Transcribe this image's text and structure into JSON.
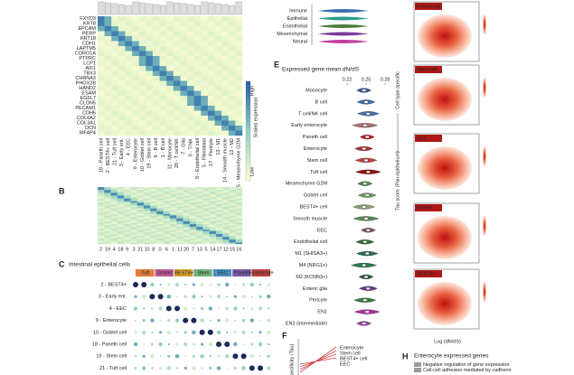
{
  "panels": {
    "A": {
      "letter": "A",
      "genes": [
        "FXYD3",
        "KRT8",
        "EPCAM",
        "PERP",
        "KRT18",
        "CDH1",
        "LAPTM5",
        "CORO1A",
        "PTPRC",
        "LCP1",
        "AIF1",
        "TBX3",
        "CHRNA3",
        "PHOX2B",
        "HAND2",
        "ESAM",
        "EGFL7",
        "CLDN5",
        "PECAM1",
        "CDH5",
        "COL6A2",
        "COL3A1",
        "DCN",
        "MFAP4"
      ],
      "clusters": [
        "18 - Paneth cell",
        "2 - BEST4+ cell",
        "21 - Tuft cell",
        "3 - Early ent.",
        "4 - EEC",
        "9 - Enterocyte",
        "10 - Goblet cell",
        "19 - Stem cell",
        "6 - B cell",
        "1 - B cell",
        "11 - Monocyte",
        "20 - T cell/NK",
        "7 - Glia",
        "0 - T/NK",
        "8 - Endothelial cell",
        "5 - Fibroblast",
        "17 - Pericyte",
        "13 - M1",
        "14 - Smooth muscle",
        "12 - M2",
        "15 - Mesenchyme G2M"
      ],
      "legend_title": "Scaled expression",
      "legend_high": "High",
      "legend_low": "Low"
    },
    "B": {
      "letter": "B",
      "clusters": [
        "2",
        "19",
        "4",
        "18",
        "9",
        "3",
        "21",
        "10",
        "8",
        "0",
        "6",
        "1",
        "11",
        "20",
        "7",
        "13",
        "5",
        "14",
        "17",
        "12",
        "15",
        "16"
      ]
    },
    "C": {
      "letter": "C",
      "title": "Intestinal epithelial cells",
      "groups": [
        {
          "name": "Tuft",
          "color": "#e07b3a"
        },
        {
          "name": "Goblet",
          "color": "#c05a9a"
        },
        {
          "name": "BEST4+",
          "color": "#d2a030"
        },
        {
          "name": "Stem",
          "color": "#6fb27a"
        },
        {
          "name": "EEC",
          "color": "#4a8fc0"
        },
        {
          "name": "Paneth",
          "color": "#7a5aa8"
        },
        {
          "name": "Enterocyte",
          "color": "#c04040"
        }
      ],
      "rows": [
        "2 - BEST4+",
        "3 - Early ent.",
        "4 - EEC",
        "9 - Enterocyte",
        "10 - Goblet cell",
        "18 - Paneth cell",
        "19 - Stem cell",
        "21 - Tuft cell"
      ]
    },
    "D": {
      "groups": [
        {
          "name": "Immune",
          "color": "#3a6fb0"
        },
        {
          "name": "Epithelial",
          "color": "#2f9c8e"
        },
        {
          "name": "Endothelial",
          "color": "#4a7a3a"
        },
        {
          "name": "Mesenchymal",
          "color": "#7a3a9a"
        },
        {
          "name": "Neural",
          "color": "#c040a0"
        }
      ]
    },
    "E": {
      "letter": "E",
      "title": "Expressed gene mean dN/dS",
      "xticks": [
        {
          "value": 0.22,
          "label": "0.22"
        },
        {
          "value": 0.25,
          "label": "0.25"
        },
        {
          "value": 0.28,
          "label": "0.28"
        }
      ],
      "xlim": [
        0.2,
        0.3
      ],
      "rows": [
        {
          "name": "Monocyte",
          "color": "#3a5aa0"
        },
        {
          "name": "B cell",
          "color": "#3a6fb0"
        },
        {
          "name": "T cell/NK cell",
          "color": "#4a70a8"
        },
        {
          "name": "Early enterocyte",
          "color": "#b07070"
        },
        {
          "name": "Paneth cell",
          "color": "#c02020"
        },
        {
          "name": "Enterocyte",
          "color": "#b03030"
        },
        {
          "name": "Stem cell",
          "color": "#c04040"
        },
        {
          "name": "Tuft cell",
          "color": "#901010"
        },
        {
          "name": "Mesenchyme G2M",
          "color": "#4a8a4a"
        },
        {
          "name": "Goblet cell",
          "color": "#6a9a5a"
        },
        {
          "name": "BEST4+ cell",
          "color": "#8aa070"
        },
        {
          "name": "Smooth muscle",
          "color": "#5a8a5a"
        },
        {
          "name": "EEC",
          "color": "#7a5a5a"
        },
        {
          "name": "Endothelial cell",
          "color": "#3a6a3a"
        },
        {
          "name": "M1 (SHISA3+)",
          "color": "#2a6a4a"
        },
        {
          "name": "M4 (NRG1+)",
          "color": "#2a7a4a"
        },
        {
          "name": "M2 (KCNN3+)",
          "color": "#2a5a3a"
        },
        {
          "name": "Enteric glia",
          "color": "#6a3a8a"
        },
        {
          "name": "Pericyte",
          "color": "#3a7a3a"
        },
        {
          "name": "EN1",
          "color": "#b030a0"
        },
        {
          "name": "EN2 (intermediate)",
          "color": "#9a40a0"
        }
      ]
    },
    "F": {
      "letter": "F",
      "ylabel": "Specificity (Tau)",
      "legend": [
        "Enterocyte",
        "Stem cell",
        "BEST4+ cell",
        "EEC"
      ]
    },
    "G": {
      "panels": [
        "Enterocyte",
        "Stem cell",
        "EEC",
        "Goblet",
        "BEST4+"
      ],
      "ylabel_top": "Cell type-specific",
      "ylabel": "Tau score (Pan-epithelium)",
      "xlabel": "Log (dN/dS)"
    },
    "H": {
      "letter": "H",
      "title": "Enterocyte expressed genes",
      "terms": [
        "Negative regulation of gene expression",
        "Cell-cell adhesion mediated by cadherin"
      ]
    }
  }
}
